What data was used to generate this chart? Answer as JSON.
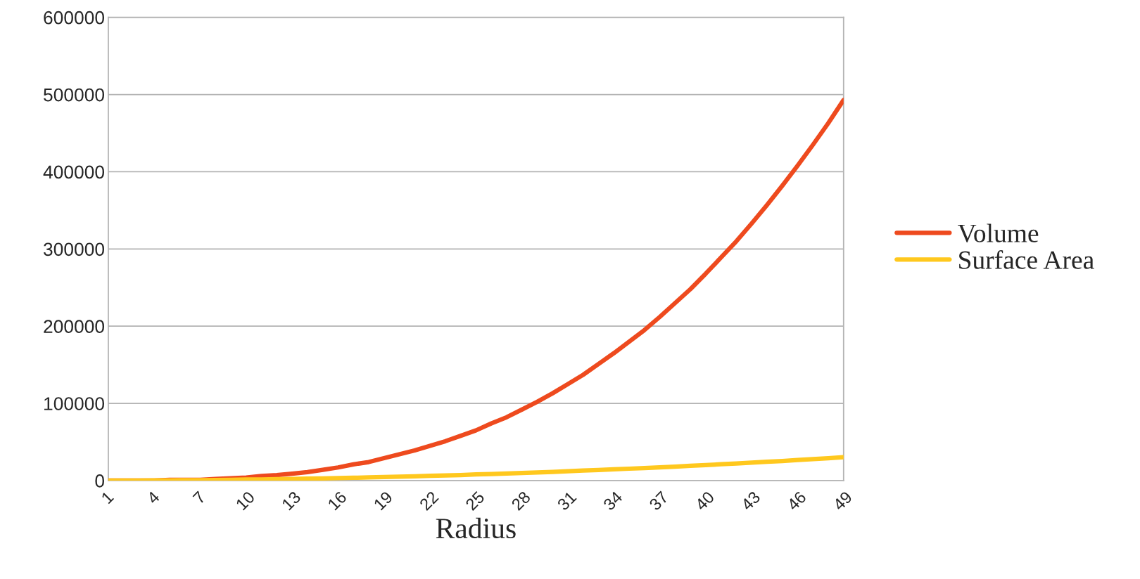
{
  "chart_data": {
    "type": "line",
    "xlabel": "Radius",
    "categories": [
      "1",
      null,
      null,
      "4",
      null,
      null,
      "7",
      null,
      null,
      "10",
      null,
      null,
      "13",
      null,
      null,
      "16",
      null,
      null,
      "19",
      null,
      null,
      "22",
      null,
      null,
      "25",
      null,
      null,
      "28",
      null,
      null,
      "31",
      null,
      null,
      "34",
      null,
      null,
      "37",
      null,
      null,
      "40",
      null,
      null,
      "43",
      null,
      null,
      "46",
      null,
      null,
      "49"
    ],
    "series": [
      {
        "name": "Volume",
        "color": "#ee4a1e",
        "values": [
          0,
          0,
          0,
          0,
          1000,
          1000,
          1000,
          2000,
          3000,
          4000,
          6000,
          7000,
          9000,
          11000,
          14000,
          17000,
          21000,
          24000,
          29000,
          34000,
          39000,
          45000,
          51000,
          58000,
          65000,
          74000,
          82000,
          92000,
          102000,
          113000,
          125000,
          137000,
          151000,
          165000,
          180000,
          195000,
          212000,
          230000,
          248000,
          268000,
          289000,
          310000,
          333000,
          357000,
          382000,
          408000,
          435000,
          463000,
          493000
        ]
      },
      {
        "name": "Surface Area",
        "color": "#ffc81e",
        "values": [
          0,
          0,
          100,
          200,
          300,
          500,
          600,
          800,
          1000,
          1300,
          1500,
          1800,
          2100,
          2500,
          2800,
          3200,
          3600,
          4100,
          4500,
          5000,
          5500,
          6100,
          6600,
          7200,
          7900,
          8500,
          9200,
          9900,
          10600,
          11300,
          12100,
          12900,
          13700,
          14500,
          15400,
          16300,
          17200,
          18100,
          19100,
          20100,
          21100,
          22200,
          23200,
          24300,
          25400,
          26600,
          27800,
          29000,
          30200
        ]
      }
    ],
    "ylim": [
      0,
      600000
    ],
    "yticks": [
      0,
      100000,
      200000,
      300000,
      400000,
      500000,
      600000
    ],
    "grid": "y",
    "legend": "right",
    "marker": "none",
    "line_style": "solid"
  }
}
